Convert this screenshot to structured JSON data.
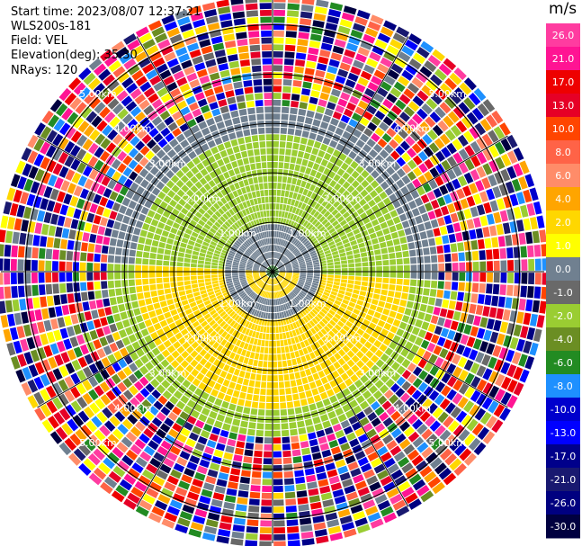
{
  "header": {
    "start_time": "Start time: 2023/08/07 12:37:21",
    "instrument": "WLS200s-181",
    "field": "Field: VEL",
    "elevation": "Elevation(deg): 35.30",
    "nrays": "NRays: 120"
  },
  "colorbar": {
    "unit": "m/s",
    "ticks": [
      "26.0",
      "21.0",
      "17.0",
      "13.0",
      "10.0",
      "8.0",
      "6.0",
      "4.0",
      "2.0",
      "1.0",
      "0.0",
      "-1.0",
      "-2.0",
      "-4.0",
      "-6.0",
      "-8.0",
      "-10.0",
      "-13.0",
      "-17.0",
      "-21.0",
      "-26.0",
      "-30.0"
    ],
    "colors": [
      "#ff3ca0",
      "#ff1493",
      "#ee0000",
      "#e60026",
      "#ff4500",
      "#ff6347",
      "#ff8c69",
      "#ffa500",
      "#ffd700",
      "#ffff00",
      "#708090",
      "#696969",
      "#9acd32",
      "#6b8e23",
      "#228b22",
      "#1e90ff",
      "#0000cd",
      "#0000ff",
      "#00008b",
      "#191970",
      "#000080",
      "#000040"
    ]
  },
  "chart_data": {
    "type": "heatmap",
    "title": "",
    "field": "VEL",
    "unit": "m/s",
    "rings_km": [
      1.0,
      2.0,
      3.0,
      4.0,
      5.0
    ],
    "ring_labels": [
      "1.00km",
      "2.00km",
      "3.00km",
      "4.00km",
      "5.00km"
    ],
    "nrays": 120,
    "max_range_km": 5.5,
    "pattern": [
      {
        "range_km": [
          0.0,
          0.5
        ],
        "north_half": "#708090",
        "south_half": "#ffd700",
        "center": "#228b22"
      },
      {
        "range_km": [
          0.5,
          1.0
        ],
        "north_half": "#708090",
        "south_half": "#708090"
      },
      {
        "range_km": [
          1.0,
          2.8
        ],
        "north_half": "#9acd32",
        "south_half": "#ffd700"
      },
      {
        "range_km": [
          2.8,
          3.3
        ],
        "north_half": "#708090",
        "south_half": "#9acd32"
      },
      {
        "range_km": [
          3.3,
          5.5
        ],
        "north_half": "noise",
        "south_half": "noise"
      }
    ]
  }
}
